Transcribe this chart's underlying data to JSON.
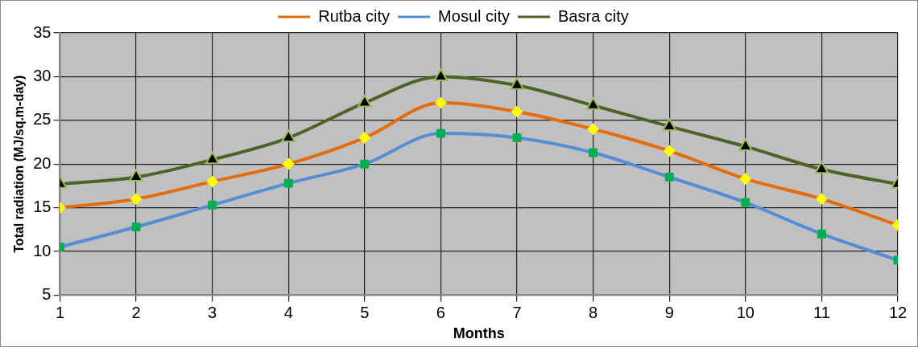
{
  "chart_data": {
    "type": "line",
    "xlabel": "Months",
    "ylabel": "Total radiation (MJ/sq.m-day)",
    "x": [
      1,
      2,
      3,
      4,
      5,
      6,
      7,
      8,
      9,
      10,
      11,
      12
    ],
    "xlim": [
      1,
      12
    ],
    "xticks": [
      1,
      2,
      3,
      4,
      5,
      6,
      7,
      8,
      9,
      10,
      11,
      12
    ],
    "series": [
      {
        "name": "Rutba city",
        "color": "#e46c0a",
        "marker": "diamond",
        "values": [
          15,
          16,
          18,
          20,
          23,
          27,
          26,
          24,
          21.5,
          18.3,
          16,
          13
        ]
      },
      {
        "name": "Mosul city",
        "color": "#558ed5",
        "marker": "square",
        "values": [
          10.5,
          12.8,
          15.3,
          17.8,
          20,
          23.5,
          23,
          21.3,
          18.5,
          15.6,
          12,
          9
        ]
      },
      {
        "name": "Basra city",
        "color": "#4f6228",
        "marker": "triangle",
        "values": [
          17.7,
          18.5,
          20.5,
          23,
          27,
          30,
          29,
          26.7,
          24.3,
          22,
          19.4,
          17.7
        ]
      }
    ],
    "ylim": [
      5,
      35
    ],
    "yticks": [
      5,
      10,
      15,
      20,
      25,
      30,
      35
    ],
    "grid": true,
    "legend": "top",
    "line_style": "solid"
  }
}
